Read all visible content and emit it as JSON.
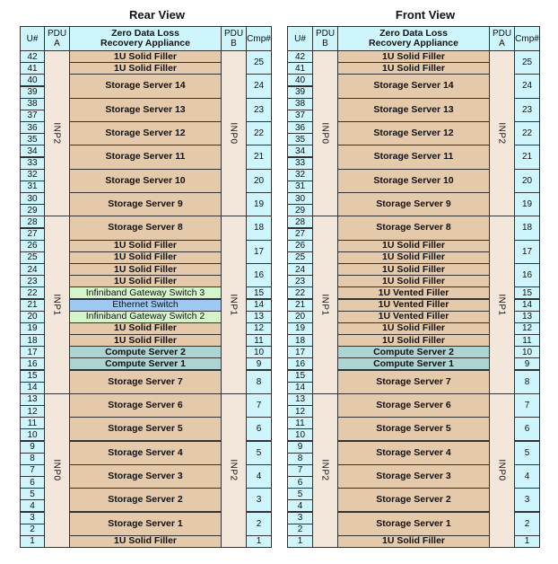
{
  "colors": {
    "filler": "#e5c9ab",
    "storage": "#e5c9ab",
    "infiniband": "#d4f5c9",
    "ethernet": "#9ec9f2",
    "compute": "#aed3d3",
    "cyan": "#cdf5fb",
    "pdu": "#f3e6da"
  },
  "views": [
    {
      "title": "Rear View",
      "headers": {
        "u": "U#",
        "pdu_left": "PDU\nA",
        "main": "Zero Data Loss\nRecovery Appliance",
        "pdu_right": "PDU\nB",
        "cmp": "Cmp#"
      },
      "pdu_left": [
        {
          "label": "INP2",
          "top": 42,
          "bottom": 29
        },
        {
          "label": "INP1",
          "top": 28,
          "bottom": 14
        },
        {
          "label": "INP0",
          "top": 13,
          "bottom": 1
        }
      ],
      "pdu_right": [
        {
          "label": "INP0",
          "top": 42,
          "bottom": 29
        },
        {
          "label": "INP1",
          "top": 28,
          "bottom": 14
        },
        {
          "label": "INP2",
          "top": 13,
          "bottom": 1
        }
      ],
      "components": [
        {
          "label": "1U Solid Filler",
          "top": 42,
          "size": 1,
          "kind": "filler"
        },
        {
          "label": "1U Solid Filler",
          "top": 41,
          "size": 1,
          "kind": "filler"
        },
        {
          "label": "Storage Server 14",
          "top": 40,
          "size": 2,
          "kind": "storage"
        },
        {
          "label": "Storage Server 13",
          "top": 38,
          "size": 2,
          "kind": "storage"
        },
        {
          "label": "Storage Server 12",
          "top": 36,
          "size": 2,
          "kind": "storage"
        },
        {
          "label": "Storage Server 11",
          "top": 34,
          "size": 2,
          "kind": "storage"
        },
        {
          "label": "Storage Server 10",
          "top": 32,
          "size": 2,
          "kind": "storage"
        },
        {
          "label": "Storage Server 9",
          "top": 30,
          "size": 2,
          "kind": "storage"
        },
        {
          "label": "Storage Server 8",
          "top": 28,
          "size": 2,
          "kind": "storage"
        },
        {
          "label": "1U Solid Filler",
          "top": 26,
          "size": 1,
          "kind": "filler"
        },
        {
          "label": "1U Solid Filler",
          "top": 25,
          "size": 1,
          "kind": "filler"
        },
        {
          "label": "1U Solid Filler",
          "top": 24,
          "size": 1,
          "kind": "filler"
        },
        {
          "label": "1U Solid Filler",
          "top": 23,
          "size": 1,
          "kind": "filler"
        },
        {
          "label": "Infiniband Gateway Switch 3",
          "top": 22,
          "size": 1,
          "kind": "infiniband"
        },
        {
          "label": "Ethernet Switch",
          "top": 21,
          "size": 1,
          "kind": "ethernet"
        },
        {
          "label": "Infiniband Gateway Switch 2",
          "top": 20,
          "size": 1,
          "kind": "infiniband"
        },
        {
          "label": "1U Solid Filler",
          "top": 19,
          "size": 1,
          "kind": "filler"
        },
        {
          "label": "1U Solid Filler",
          "top": 18,
          "size": 1,
          "kind": "filler"
        },
        {
          "label": "Compute Server 2",
          "top": 17,
          "size": 1,
          "kind": "compute"
        },
        {
          "label": "Compute Server 1",
          "top": 16,
          "size": 1,
          "kind": "compute"
        },
        {
          "label": "Storage Server 7",
          "top": 15,
          "size": 2,
          "kind": "storage"
        },
        {
          "label": "Storage Server 6",
          "top": 13,
          "size": 2,
          "kind": "storage"
        },
        {
          "label": "Storage Server 5",
          "top": 11,
          "size": 2,
          "kind": "storage"
        },
        {
          "label": "Storage Server 4",
          "top": 9,
          "size": 2,
          "kind": "storage"
        },
        {
          "label": "Storage Server 3",
          "top": 7,
          "size": 2,
          "kind": "storage"
        },
        {
          "label": "Storage Server 2",
          "top": 5,
          "size": 2,
          "kind": "storage"
        },
        {
          "label": "Storage Server 1",
          "top": 3,
          "size": 2,
          "kind": "storage"
        },
        {
          "label": "1U Solid Filler",
          "top": 1,
          "size": 1,
          "kind": "filler"
        }
      ]
    },
    {
      "title": "Front View",
      "headers": {
        "u": "U#",
        "pdu_left": "PDU\nB",
        "main": "Zero Data Loss\nRecovery Appliance",
        "pdu_right": "PDU\nA",
        "cmp": "Cmp#"
      },
      "pdu_left": [
        {
          "label": "INP0",
          "top": 42,
          "bottom": 29
        },
        {
          "label": "INP1",
          "top": 28,
          "bottom": 14
        },
        {
          "label": "INP2",
          "top": 13,
          "bottom": 1
        }
      ],
      "pdu_right": [
        {
          "label": "INP2",
          "top": 42,
          "bottom": 29
        },
        {
          "label": "INP1",
          "top": 28,
          "bottom": 14
        },
        {
          "label": "INP0",
          "top": 13,
          "bottom": 1
        }
      ],
      "components": [
        {
          "label": "1U Solid Filler",
          "top": 42,
          "size": 1,
          "kind": "filler"
        },
        {
          "label": "1U Solid Filler",
          "top": 41,
          "size": 1,
          "kind": "filler"
        },
        {
          "label": "Storage Server 14",
          "top": 40,
          "size": 2,
          "kind": "storage"
        },
        {
          "label": "Storage Server 13",
          "top": 38,
          "size": 2,
          "kind": "storage"
        },
        {
          "label": "Storage Server 12",
          "top": 36,
          "size": 2,
          "kind": "storage"
        },
        {
          "label": "Storage Server 11",
          "top": 34,
          "size": 2,
          "kind": "storage"
        },
        {
          "label": "Storage Server 10",
          "top": 32,
          "size": 2,
          "kind": "storage"
        },
        {
          "label": "Storage Server 9",
          "top": 30,
          "size": 2,
          "kind": "storage"
        },
        {
          "label": "Storage Server 8",
          "top": 28,
          "size": 2,
          "kind": "storage"
        },
        {
          "label": "1U Solid Filler",
          "top": 26,
          "size": 1,
          "kind": "filler"
        },
        {
          "label": "1U Solid Filler",
          "top": 25,
          "size": 1,
          "kind": "filler"
        },
        {
          "label": "1U Solid Filler",
          "top": 24,
          "size": 1,
          "kind": "filler"
        },
        {
          "label": "1U Solid Filler",
          "top": 23,
          "size": 1,
          "kind": "filler"
        },
        {
          "label": "1U Vented Filler",
          "top": 22,
          "size": 1,
          "kind": "filler"
        },
        {
          "label": "1U Vented Filler",
          "top": 21,
          "size": 1,
          "kind": "filler"
        },
        {
          "label": "1U Vented Filler",
          "top": 20,
          "size": 1,
          "kind": "filler"
        },
        {
          "label": "1U Solid Filler",
          "top": 19,
          "size": 1,
          "kind": "filler"
        },
        {
          "label": "1U Solid Filler",
          "top": 18,
          "size": 1,
          "kind": "filler"
        },
        {
          "label": "Compute Server 2",
          "top": 17,
          "size": 1,
          "kind": "compute"
        },
        {
          "label": "Compute Server 1",
          "top": 16,
          "size": 1,
          "kind": "compute"
        },
        {
          "label": "Storage Server 7",
          "top": 15,
          "size": 2,
          "kind": "storage"
        },
        {
          "label": "Storage Server 6",
          "top": 13,
          "size": 2,
          "kind": "storage"
        },
        {
          "label": "Storage Server 5",
          "top": 11,
          "size": 2,
          "kind": "storage"
        },
        {
          "label": "Storage Server 4",
          "top": 9,
          "size": 2,
          "kind": "storage"
        },
        {
          "label": "Storage Server 3",
          "top": 7,
          "size": 2,
          "kind": "storage"
        },
        {
          "label": "Storage Server 2",
          "top": 5,
          "size": 2,
          "kind": "storage"
        },
        {
          "label": "Storage Server 1",
          "top": 3,
          "size": 2,
          "kind": "storage"
        },
        {
          "label": "1U Solid Filler",
          "top": 1,
          "size": 1,
          "kind": "filler"
        }
      ]
    }
  ],
  "cmp_groups": [
    {
      "label": "25",
      "top": 42,
      "size": 2
    },
    {
      "label": "24",
      "top": 40,
      "size": 2
    },
    {
      "label": "23",
      "top": 38,
      "size": 2
    },
    {
      "label": "22",
      "top": 36,
      "size": 2
    },
    {
      "label": "21",
      "top": 34,
      "size": 2
    },
    {
      "label": "20",
      "top": 32,
      "size": 2
    },
    {
      "label": "19",
      "top": 30,
      "size": 2
    },
    {
      "label": "18",
      "top": 28,
      "size": 2
    },
    {
      "label": "17",
      "top": 26,
      "size": 2
    },
    {
      "label": "16",
      "top": 24,
      "size": 2
    },
    {
      "label": "15",
      "top": 22,
      "size": 1
    },
    {
      "label": "14",
      "top": 21,
      "size": 1
    },
    {
      "label": "13",
      "top": 20,
      "size": 1
    },
    {
      "label": "12",
      "top": 19,
      "size": 1
    },
    {
      "label": "11",
      "top": 18,
      "size": 1
    },
    {
      "label": "10",
      "top": 17,
      "size": 1
    },
    {
      "label": "9",
      "top": 16,
      "size": 1
    },
    {
      "label": "8",
      "top": 15,
      "size": 2
    },
    {
      "label": "7",
      "top": 13,
      "size": 2
    },
    {
      "label": "6",
      "top": 11,
      "size": 2
    },
    {
      "label": "5",
      "top": 9,
      "size": 2
    },
    {
      "label": "4",
      "top": 7,
      "size": 2
    },
    {
      "label": "3",
      "top": 5,
      "size": 2
    },
    {
      "label": "2",
      "top": 3,
      "size": 2
    },
    {
      "label": "1",
      "top": 1,
      "size": 1
    }
  ],
  "u_numbers": [
    "42",
    "41",
    "40",
    "39",
    "38",
    "37",
    "36",
    "35",
    "34",
    "33",
    "32",
    "31",
    "30",
    "29",
    "28",
    "27",
    "26",
    "25",
    "24",
    "23",
    "22",
    "21",
    "20",
    "19",
    "18",
    "17",
    "16",
    "15",
    "14",
    "13",
    "12",
    "11",
    "10",
    "9",
    "8",
    "7",
    "6",
    "5",
    "4",
    "3",
    "2",
    "1"
  ]
}
